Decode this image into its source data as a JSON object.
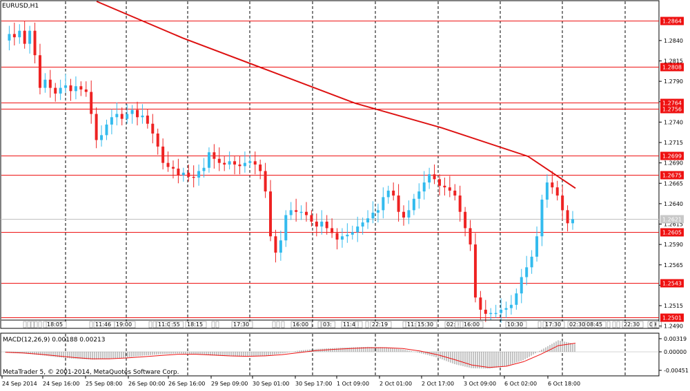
{
  "window": {
    "symbol_title": "EURUSD,H1",
    "copyright": "MetaTrader 5, © 2001-2014, MetaQuotes Software Corp."
  },
  "colors": {
    "background": "#ffffff",
    "bull_candle": "#33bbee",
    "bear_candle": "#ee2222",
    "level_line": "#ee1111",
    "level_tag_bg": "#ee1111",
    "level_tag_text": "#ffffff",
    "ma_line": "#dd1111",
    "grid_line": "#000000",
    "macd_hist": "#888888",
    "macd_signal": "#ee1111",
    "current_price_line": "#c0c0c0"
  },
  "price_axis": {
    "ticks": [
      "1.2840",
      "1.2815",
      "1.2790",
      "1.2765",
      "1.2740",
      "1.2715",
      "1.2690",
      "1.2665",
      "1.2640",
      "1.2615",
      "1.2590",
      "1.2565",
      "1.2540",
      "1.2515",
      "1.2490"
    ]
  },
  "current_price": "1.2621",
  "levels": [
    {
      "price": "1.2864",
      "value": 1.2864
    },
    {
      "price": "1.2808",
      "value": 1.2808
    },
    {
      "price": "1.2764",
      "value": 1.2764
    },
    {
      "price": "1.2756",
      "value": 1.2756
    },
    {
      "price": "1.2699",
      "value": 1.2699
    },
    {
      "price": "1.2675",
      "value": 1.2675
    },
    {
      "price": "1.2605",
      "value": 1.2605
    },
    {
      "price": "1.2543",
      "value": 1.2543
    },
    {
      "price": "1.2501",
      "value": 1.2501
    }
  ],
  "time_axis": {
    "labels": [
      "24 Sep 2014",
      "24 Sep 16:00",
      "25 Sep 08:00",
      "26 Sep 00:00",
      "26 Sep 16:00",
      "29 Sep 09:00",
      "30 Sep 01:00",
      "30 Sep 17:00",
      "1 Oct 09:00",
      "2 Oct 01:00",
      "2 Oct 17:00",
      "3 Oct 09:00",
      "6 Oct 02:00",
      "6 Oct 18:00"
    ]
  },
  "session_markers": [
    "18:05",
    "11:46",
    "19:00",
    "11:02",
    ":55",
    "18:15",
    "17:30",
    "16:00",
    "03:",
    "11:43",
    "22:19",
    "11:",
    "15:30",
    "02:0",
    "16:00",
    "10:30",
    "17:30",
    "02:30",
    "08:45",
    "22:30",
    "09:"
  ],
  "macd": {
    "title": "MACD(12,26,9) 0.00188 0.00213",
    "ticks": [
      "0.00319",
      "0.00000",
      "-0.00451"
    ]
  },
  "chart_data": [
    {
      "type": "candlestick",
      "title": "EURUSD,H1",
      "ylim": [
        1.2488,
        1.2888
      ],
      "close_path": [
        1.284,
        1.2848,
        1.2844,
        1.2852,
        1.2836,
        1.2852,
        1.2822,
        1.2782,
        1.2792,
        1.2782,
        1.2775,
        1.2782,
        1.2785,
        1.2778,
        1.2784,
        1.278,
        1.2777,
        1.275,
        1.2718,
        1.2724,
        1.2737,
        1.2746,
        1.275,
        1.2744,
        1.275,
        1.2755,
        1.2746,
        1.2748,
        1.2738,
        1.2726,
        1.271,
        1.269,
        1.2685,
        1.2683,
        1.2675,
        1.2678,
        1.2673,
        1.2672,
        1.268,
        1.2684,
        1.2703,
        1.2695,
        1.269,
        1.2688,
        1.2692,
        1.2688,
        1.2686,
        1.269,
        1.2692,
        1.2688,
        1.268,
        1.2655,
        1.26,
        1.258,
        1.2595,
        1.2626,
        1.2632,
        1.263,
        1.263,
        1.2626,
        1.2618,
        1.2612,
        1.2618,
        1.261,
        1.2604,
        1.2596,
        1.26,
        1.2602,
        1.2605,
        1.2612,
        1.2617,
        1.2622,
        1.2629,
        1.2632,
        1.2648,
        1.2656,
        1.265,
        1.263,
        1.2623,
        1.2632,
        1.2646,
        1.2655,
        1.2666,
        1.2676,
        1.267,
        1.2662,
        1.266,
        1.2656,
        1.265,
        1.263,
        1.261,
        1.259,
        1.2525,
        1.251,
        1.2505,
        1.2506,
        1.2506,
        1.251,
        1.2512,
        1.2516,
        1.253,
        1.255,
        1.2562,
        1.2575,
        1.26,
        1.2645,
        1.2666,
        1.266,
        1.265,
        1.2632,
        1.2616,
        1.2621
      ],
      "moving_average": {
        "x_index": [
          0,
          20,
          40,
          60,
          80,
          100,
          111
        ],
        "values": [
          1.2888,
          1.2843,
          1.2803,
          1.2763,
          1.2733,
          1.2698,
          1.2659
        ]
      }
    },
    {
      "type": "bar",
      "title": "MACD(12,26,9) 0.00188 0.00213",
      "ylim": [
        -0.00451,
        0.00319
      ],
      "histogram_path": [
        -0.0002,
        -0.0004,
        -0.0008,
        -0.0013,
        -0.0017,
        -0.0019,
        -0.0018,
        -0.0014,
        -0.0009,
        -0.0006,
        -0.0004,
        -0.0006,
        -0.0009,
        -0.0011,
        -0.0012,
        -0.001,
        -0.0004,
        0.0003,
        0.0007,
        0.0009,
        0.0011,
        0.0012,
        0.0011,
        0.0006,
        -0.0003,
        -0.0014,
        -0.003,
        -0.004,
        -0.0041,
        -0.0035,
        -0.002,
        0.0004,
        0.0028,
        0.0019
      ],
      "signal_path": [
        -0.0001,
        -0.0003,
        -0.0006,
        -0.001,
        -0.0014,
        -0.0017,
        -0.0017,
        -0.0015,
        -0.0012,
        -0.0009,
        -0.0006,
        -0.0006,
        -0.0008,
        -0.001,
        -0.0011,
        -0.001,
        -0.0007,
        -0.0002,
        0.0003,
        0.0006,
        0.0008,
        0.001,
        0.001,
        0.0008,
        0.0002,
        -0.0007,
        -0.0019,
        -0.0032,
        -0.0038,
        -0.0035,
        -0.0024,
        -0.0006,
        0.0015,
        0.0021
      ]
    }
  ]
}
